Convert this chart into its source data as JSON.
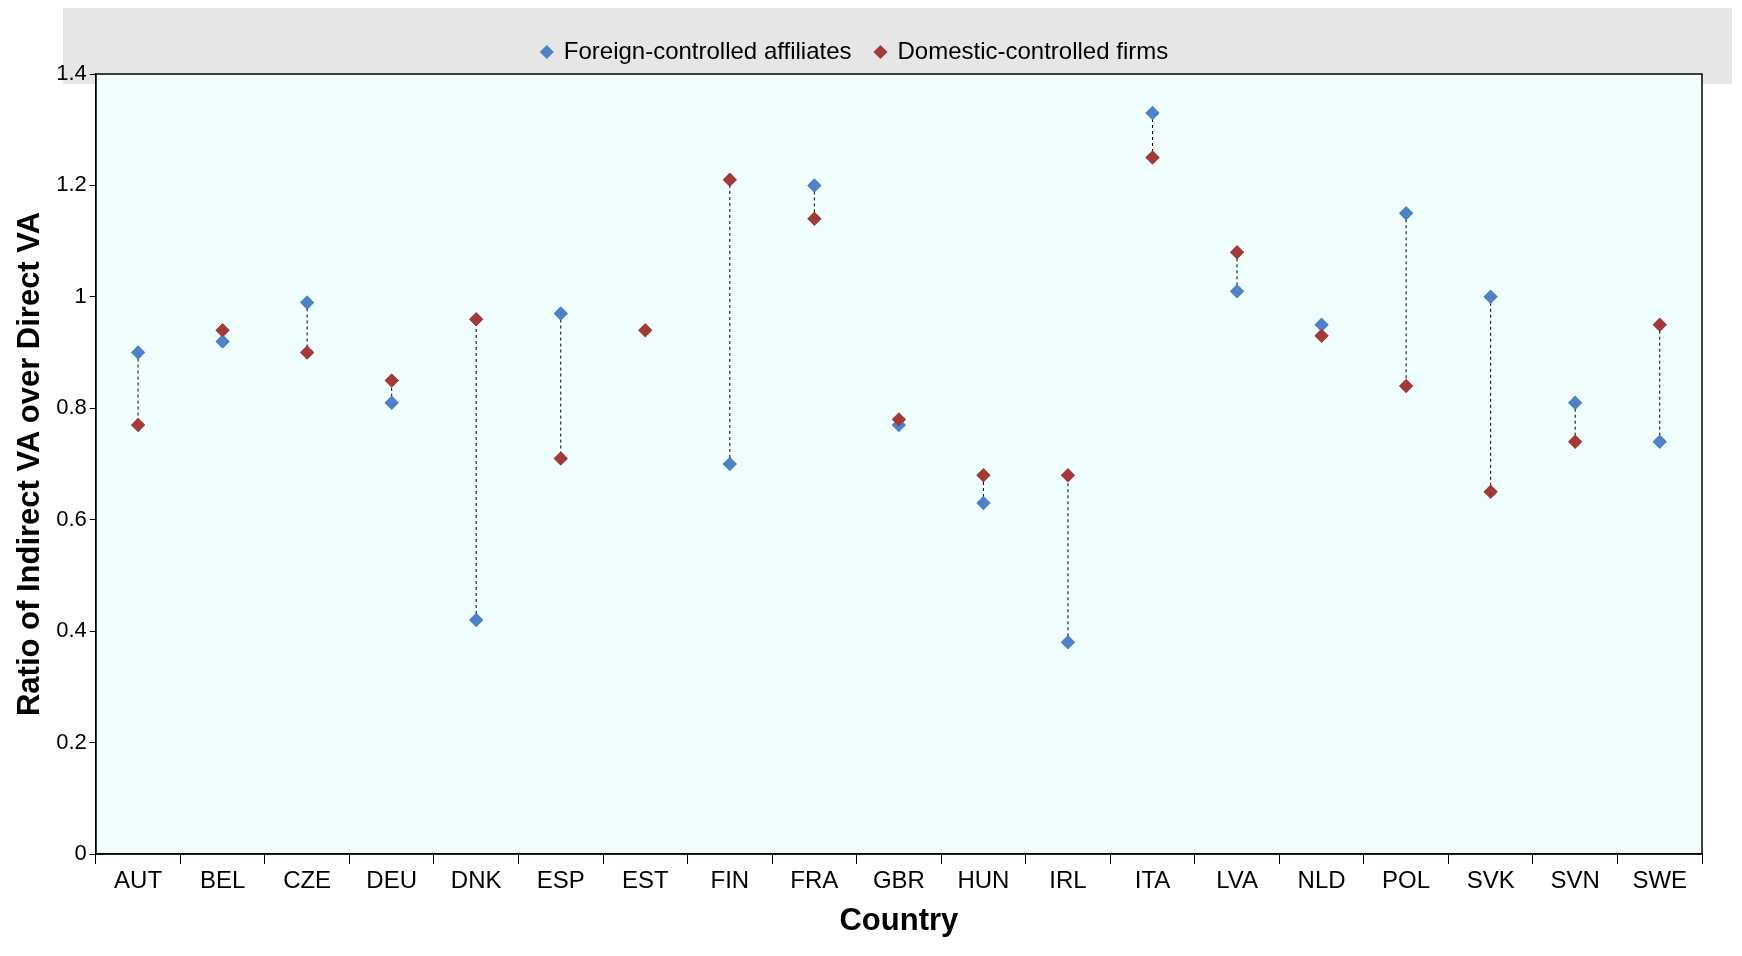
{
  "chart_data": {
    "type": "scatter",
    "xlabel": "Country",
    "ylabel": "Ratio of Indirect VA over Direct VA",
    "categories": [
      "AUT",
      "BEL",
      "CZE",
      "DEU",
      "DNK",
      "ESP",
      "EST",
      "FIN",
      "FRA",
      "GBR",
      "HUN",
      "IRL",
      "ITA",
      "LVA",
      "NLD",
      "POL",
      "SVK",
      "SVN",
      "SWE"
    ],
    "series": [
      {
        "name": "Foreign-controlled affiliates",
        "color": "#4f81c7",
        "values": [
          0.9,
          0.92,
          0.99,
          0.81,
          0.42,
          0.97,
          null,
          0.7,
          1.2,
          0.77,
          0.63,
          0.38,
          1.33,
          1.01,
          0.95,
          1.15,
          1.0,
          0.81,
          0.74
        ]
      },
      {
        "name": "Domestic-controlled firms",
        "color": "#a33a3a",
        "values": [
          0.77,
          0.94,
          0.9,
          0.85,
          0.96,
          0.71,
          0.94,
          1.21,
          1.14,
          0.78,
          0.68,
          0.68,
          1.25,
          1.08,
          0.93,
          0.84,
          0.65,
          0.74,
          0.95
        ]
      }
    ],
    "ylim": [
      0,
      1.4
    ],
    "yticks": [
      0,
      0.2,
      0.4,
      0.6,
      0.8,
      1,
      1.2,
      1.4
    ],
    "grid": false,
    "legend": "top",
    "marker": "diamond"
  }
}
